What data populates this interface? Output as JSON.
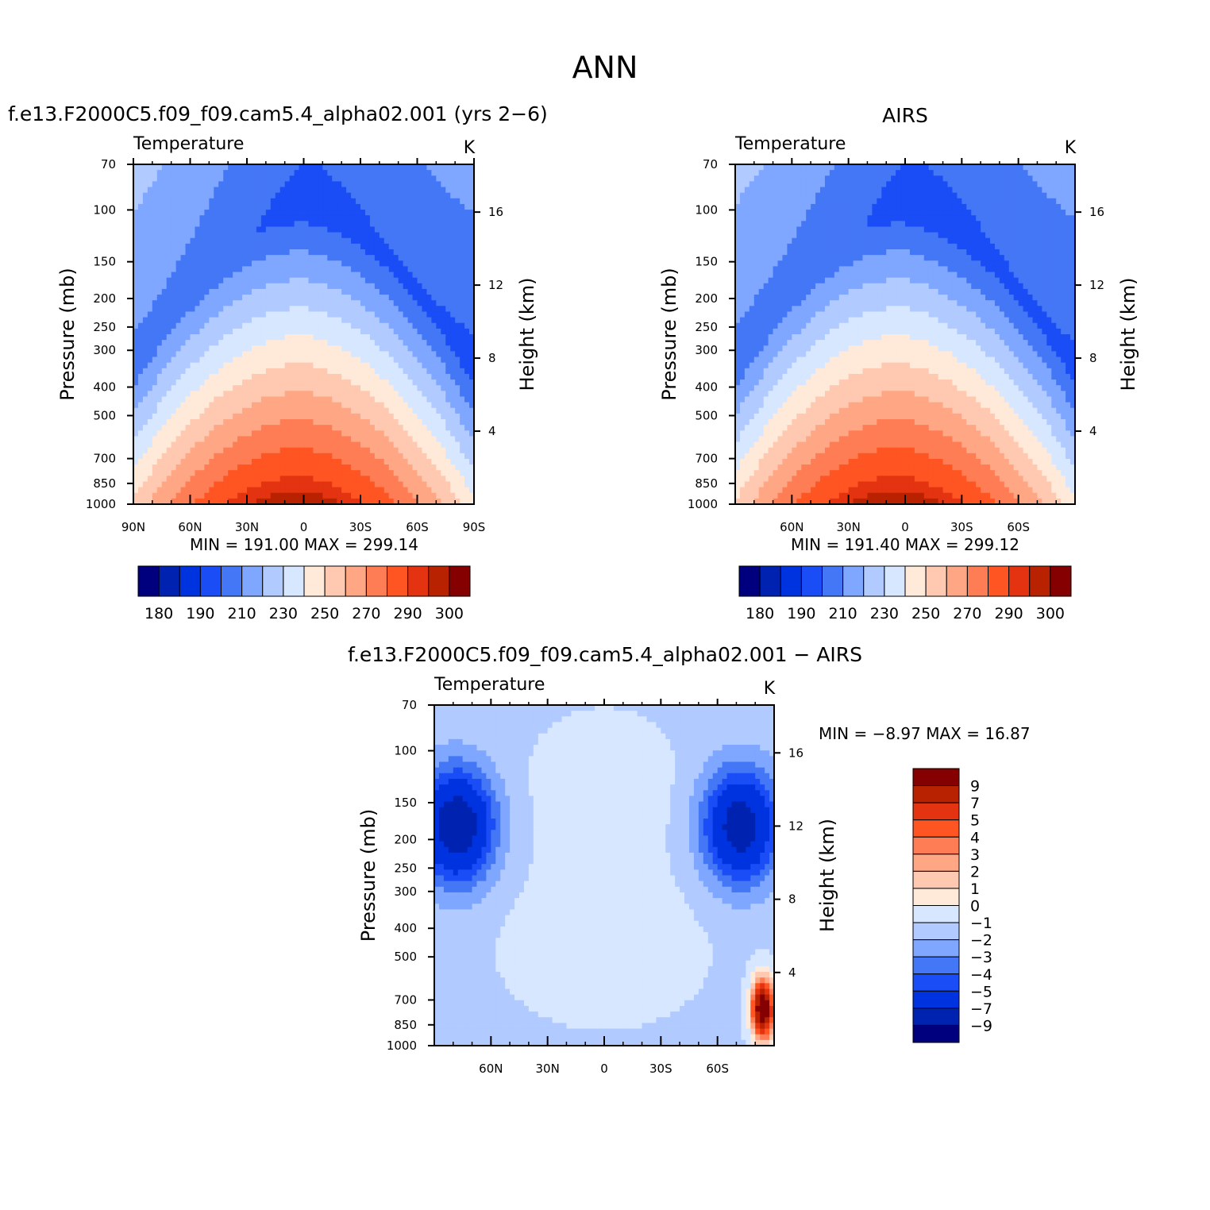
{
  "page_title": "ANN",
  "colors": {
    "temp_levels": [
      "#00007f",
      "#0022b0",
      "#0033e0",
      "#1a4df5",
      "#4477f5",
      "#7fa7ff",
      "#b1caff",
      "#d6e7ff",
      "#ffe9d9",
      "#ffc9b1",
      "#ffa784",
      "#ff7d55",
      "#ff5522",
      "#e33311",
      "#b82200",
      "#850000"
    ],
    "diff_levels": [
      "#00007f",
      "#0022b0",
      "#0033e0",
      "#1a4df5",
      "#4477f5",
      "#7fa7ff",
      "#b1caff",
      "#d6e7ff",
      "#ffe9d9",
      "#ffc9b1",
      "#ffa784",
      "#ff7d55",
      "#ff5522",
      "#e33311",
      "#b82200",
      "#850000"
    ]
  },
  "chart_data": [
    {
      "id": "model",
      "type": "heatmap",
      "panel_title": "f.e13.F2000C5.f09_f09.cam5.4_alpha02.001 (yrs 2−6)",
      "title": "Temperature",
      "units": "K",
      "xlabel": "",
      "ylabel": "Pressure (mb)",
      "y2label": "Height (km)",
      "x_ticks": [
        "90N",
        "60N",
        "30N",
        "0",
        "30S",
        "60S",
        "90S"
      ],
      "y_ticks": [
        70,
        100,
        150,
        200,
        250,
        300,
        400,
        500,
        700,
        850,
        1000
      ],
      "y2_ticks": [
        16,
        12,
        8,
        4
      ],
      "stats": "MIN = 191.00   MAX = 299.14",
      "colorbar_labels": [
        "180",
        "190",
        "210",
        "230",
        "250",
        "270",
        "290",
        "300"
      ],
      "field": "model"
    },
    {
      "id": "obs",
      "type": "heatmap",
      "panel_title": "AIRS",
      "title": "Temperature",
      "units": "K",
      "xlabel": "",
      "ylabel": "Pressure (mb)",
      "y2label": "Height (km)",
      "x_ticks": [
        "60N",
        "30N",
        "0",
        "30S",
        "60S"
      ],
      "y_ticks": [
        70,
        100,
        150,
        200,
        250,
        300,
        400,
        500,
        700,
        850,
        1000
      ],
      "y2_ticks": [
        16,
        12,
        8,
        4
      ],
      "stats": "MIN = 191.40   MAX = 299.12",
      "colorbar_labels": [
        "180",
        "190",
        "210",
        "230",
        "250",
        "270",
        "290",
        "300"
      ],
      "field": "obs"
    },
    {
      "id": "diff",
      "type": "heatmap",
      "panel_title": "f.e13.F2000C5.f09_f09.cam5.4_alpha02.001 − AIRS",
      "title": "Temperature",
      "units": "K",
      "xlabel": "",
      "ylabel": "Pressure (mb)",
      "y2label": "Height (km)",
      "x_ticks": [
        "60N",
        "30N",
        "0",
        "30S",
        "60S"
      ],
      "y_ticks": [
        70,
        100,
        150,
        200,
        250,
        300,
        400,
        500,
        700,
        850,
        1000
      ],
      "y2_ticks": [
        16,
        12,
        8,
        4
      ],
      "stats": "MIN =   −8.97   MAX =   16.87",
      "colorbar_labels": [
        "9",
        "7",
        "5",
        "4",
        "3",
        "2",
        "1",
        "0",
        "−1",
        "−2",
        "−3",
        "−4",
        "−5",
        "−7",
        "−9"
      ],
      "field": "diff"
    }
  ]
}
